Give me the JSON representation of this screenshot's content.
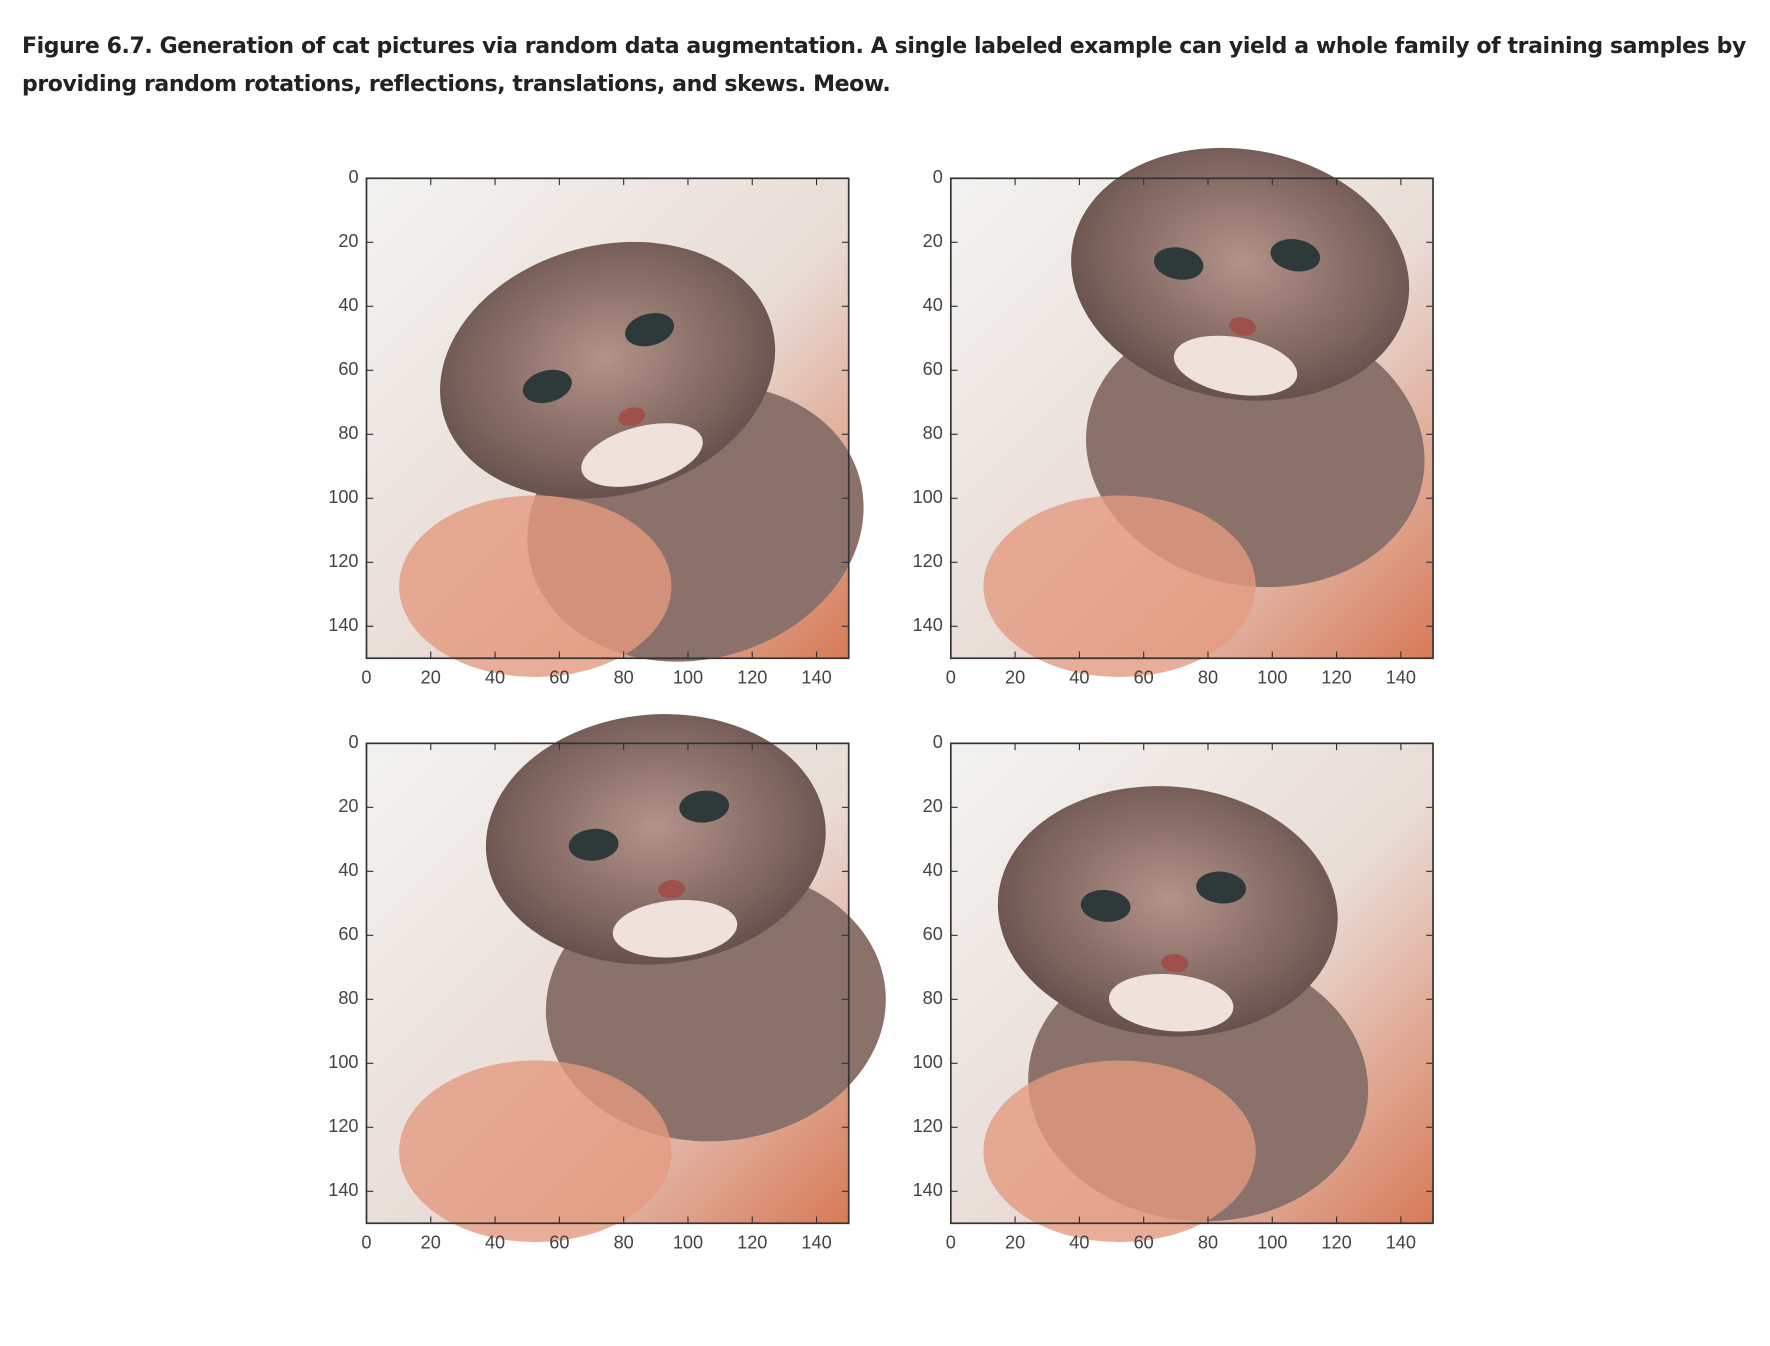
{
  "caption": "Figure 6.7. Generation of cat pictures via random data augmentation. A single labeled example can yield a whole family of training samples by providing random rotations, reflections, translations, and skews. Meow.",
  "chart_data": [
    {
      "type": "image",
      "xlim": [
        0,
        150
      ],
      "ylim": [
        0,
        150
      ],
      "y_inverted": true,
      "xticks": [
        0,
        20,
        40,
        60,
        80,
        100,
        120,
        140
      ],
      "yticks": [
        0,
        20,
        40,
        60,
        80,
        100,
        120,
        140
      ]
    },
    {
      "type": "image",
      "xlim": [
        0,
        150
      ],
      "ylim": [
        0,
        150
      ],
      "y_inverted": true,
      "xticks": [
        0,
        20,
        40,
        60,
        80,
        100,
        120,
        140
      ],
      "yticks": [
        0,
        20,
        40,
        60,
        80,
        100,
        120,
        140
      ]
    },
    {
      "type": "image",
      "xlim": [
        0,
        150
      ],
      "ylim": [
        0,
        150
      ],
      "y_inverted": true,
      "xticks": [
        0,
        20,
        40,
        60,
        80,
        100,
        120,
        140
      ],
      "yticks": [
        0,
        20,
        40,
        60,
        80,
        100,
        120,
        140
      ]
    },
    {
      "type": "image",
      "xlim": [
        0,
        150
      ],
      "ylim": [
        0,
        150
      ],
      "y_inverted": true,
      "xticks": [
        0,
        20,
        40,
        60,
        80,
        100,
        120,
        140
      ],
      "yticks": [
        0,
        20,
        40,
        60,
        80,
        100,
        120,
        140
      ]
    }
  ]
}
